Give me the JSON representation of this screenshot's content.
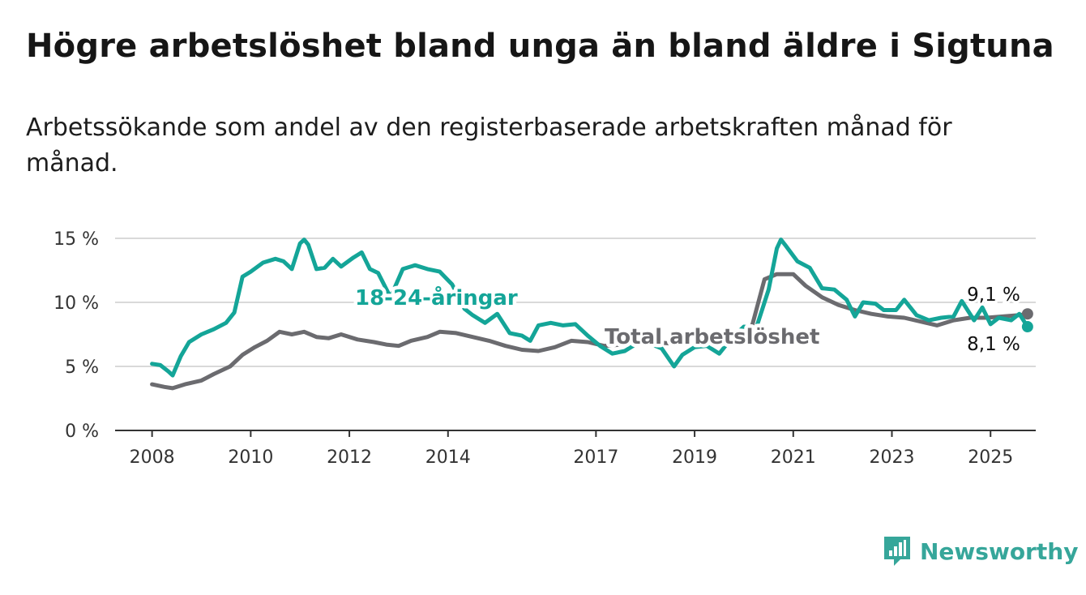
{
  "title": "Högre arbetslöshet bland unga än bland äldre i Sigtuna",
  "subtitle": "Arbetssökande som andel av den registerbaserade arbetskraften månad för månad.",
  "brand": {
    "name": "Newsworthy",
    "color": "#36a69a"
  },
  "colors": {
    "young": "#14a598",
    "total": "#6b6b6f",
    "grid": "#d9d9d9",
    "axis": "#333333"
  },
  "chart_data": {
    "type": "line",
    "y_ticks": [
      "0 %",
      "5 %",
      "10 %",
      "15 %"
    ],
    "x_ticks": [
      "2008",
      "2010",
      "2012",
      "2014",
      "2017",
      "2019",
      "2021",
      "2023",
      "2025"
    ],
    "ylim": [
      0,
      15
    ],
    "xlim": [
      "2007-04",
      "2025-12"
    ],
    "grid": "horizontal",
    "series": [
      {
        "name": "18-24-åringar",
        "color": "#14a598",
        "end_label": "8,1 %",
        "points": [
          [
            "2008-01",
            5.2
          ],
          [
            "2008-03",
            5.1
          ],
          [
            "2008-05",
            4.6
          ],
          [
            "2008-06",
            4.3
          ],
          [
            "2008-08",
            5.8
          ],
          [
            "2008-10",
            6.9
          ],
          [
            "2009-01",
            7.5
          ],
          [
            "2009-04",
            7.9
          ],
          [
            "2009-07",
            8.4
          ],
          [
            "2009-09",
            9.2
          ],
          [
            "2009-11",
            12.0
          ],
          [
            "2010-01",
            12.4
          ],
          [
            "2010-04",
            13.1
          ],
          [
            "2010-07",
            13.4
          ],
          [
            "2010-09",
            13.2
          ],
          [
            "2010-11",
            12.6
          ],
          [
            "2011-01",
            14.6
          ],
          [
            "2011-02",
            14.9
          ],
          [
            "2011-03",
            14.5
          ],
          [
            "2011-05",
            12.6
          ],
          [
            "2011-07",
            12.7
          ],
          [
            "2011-09",
            13.4
          ],
          [
            "2011-11",
            12.8
          ],
          [
            "2012-02",
            13.5
          ],
          [
            "2012-04",
            13.9
          ],
          [
            "2012-06",
            12.6
          ],
          [
            "2012-08",
            12.3
          ],
          [
            "2012-11",
            10.4
          ],
          [
            "2013-02",
            12.6
          ],
          [
            "2013-05",
            12.9
          ],
          [
            "2013-08",
            12.6
          ],
          [
            "2013-11",
            12.4
          ],
          [
            "2014-02",
            11.4
          ],
          [
            "2014-05",
            9.5
          ],
          [
            "2014-07",
            9.0
          ],
          [
            "2014-10",
            8.4
          ],
          [
            "2015-01",
            9.1
          ],
          [
            "2015-04",
            7.6
          ],
          [
            "2015-07",
            7.4
          ],
          [
            "2015-09",
            7.0
          ],
          [
            "2015-11",
            8.2
          ],
          [
            "2016-02",
            8.4
          ],
          [
            "2016-05",
            8.2
          ],
          [
            "2016-08",
            8.3
          ],
          [
            "2016-11",
            7.4
          ],
          [
            "2017-02",
            6.6
          ],
          [
            "2017-05",
            6.0
          ],
          [
            "2017-08",
            6.2
          ],
          [
            "2017-11",
            6.8
          ],
          [
            "2018-02",
            6.8
          ],
          [
            "2018-05",
            6.4
          ],
          [
            "2018-08",
            5.0
          ],
          [
            "2018-10",
            5.9
          ],
          [
            "2019-01",
            6.5
          ],
          [
            "2019-04",
            6.6
          ],
          [
            "2019-07",
            6.0
          ],
          [
            "2019-10",
            7.2
          ],
          [
            "2020-01",
            8.1
          ],
          [
            "2020-04",
            8.0
          ],
          [
            "2020-07",
            11.0
          ],
          [
            "2020-09",
            14.2
          ],
          [
            "2020-10",
            14.9
          ],
          [
            "2020-11",
            14.5
          ],
          [
            "2021-02",
            13.2
          ],
          [
            "2021-05",
            12.7
          ],
          [
            "2021-08",
            11.1
          ],
          [
            "2021-11",
            11.0
          ],
          [
            "2022-02",
            10.2
          ],
          [
            "2022-04",
            8.9
          ],
          [
            "2022-06",
            10.0
          ],
          [
            "2022-09",
            9.9
          ],
          [
            "2022-11",
            9.4
          ],
          [
            "2023-02",
            9.4
          ],
          [
            "2023-04",
            10.2
          ],
          [
            "2023-07",
            9.0
          ],
          [
            "2023-10",
            8.6
          ],
          [
            "2024-01",
            8.8
          ],
          [
            "2024-04",
            8.9
          ],
          [
            "2024-06",
            10.1
          ],
          [
            "2024-09",
            8.6
          ],
          [
            "2024-11",
            9.6
          ],
          [
            "2025-01",
            8.3
          ],
          [
            "2025-03",
            8.8
          ],
          [
            "2025-06",
            8.6
          ],
          [
            "2025-08",
            9.1
          ],
          [
            "2025-10",
            8.1
          ]
        ]
      },
      {
        "name": "Total arbetslöshet",
        "color": "#6b6b6f",
        "end_label": "9,1 %",
        "points": [
          [
            "2008-01",
            3.6
          ],
          [
            "2008-04",
            3.4
          ],
          [
            "2008-06",
            3.3
          ],
          [
            "2008-09",
            3.6
          ],
          [
            "2009-01",
            3.9
          ],
          [
            "2009-04",
            4.4
          ],
          [
            "2009-08",
            5.0
          ],
          [
            "2009-11",
            5.9
          ],
          [
            "2010-02",
            6.5
          ],
          [
            "2010-05",
            7.0
          ],
          [
            "2010-08",
            7.7
          ],
          [
            "2010-11",
            7.5
          ],
          [
            "2011-02",
            7.7
          ],
          [
            "2011-05",
            7.3
          ],
          [
            "2011-08",
            7.2
          ],
          [
            "2011-11",
            7.5
          ],
          [
            "2012-03",
            7.1
          ],
          [
            "2012-07",
            6.9
          ],
          [
            "2012-10",
            6.7
          ],
          [
            "2013-01",
            6.6
          ],
          [
            "2013-04",
            7.0
          ],
          [
            "2013-08",
            7.3
          ],
          [
            "2013-11",
            7.7
          ],
          [
            "2014-03",
            7.6
          ],
          [
            "2014-07",
            7.3
          ],
          [
            "2014-11",
            7.0
          ],
          [
            "2015-03",
            6.6
          ],
          [
            "2015-07",
            6.3
          ],
          [
            "2015-11",
            6.2
          ],
          [
            "2016-03",
            6.5
          ],
          [
            "2016-07",
            7.0
          ],
          [
            "2016-11",
            6.9
          ],
          [
            "2017-03",
            6.6
          ],
          [
            "2017-07",
            6.7
          ],
          [
            "2017-11",
            6.8
          ],
          [
            "2018-03",
            6.9
          ],
          [
            "2018-07",
            6.8
          ],
          [
            "2018-11",
            6.9
          ],
          [
            "2019-03",
            7.0
          ],
          [
            "2019-07",
            7.2
          ],
          [
            "2019-11",
            7.6
          ],
          [
            "2020-03",
            8.2
          ],
          [
            "2020-06",
            11.8
          ],
          [
            "2020-09",
            12.2
          ],
          [
            "2021-01",
            12.2
          ],
          [
            "2021-04",
            11.3
          ],
          [
            "2021-08",
            10.4
          ],
          [
            "2021-12",
            9.8
          ],
          [
            "2022-04",
            9.4
          ],
          [
            "2022-08",
            9.1
          ],
          [
            "2022-12",
            8.9
          ],
          [
            "2023-04",
            8.8
          ],
          [
            "2023-08",
            8.5
          ],
          [
            "2023-12",
            8.2
          ],
          [
            "2024-04",
            8.6
          ],
          [
            "2024-08",
            8.8
          ],
          [
            "2024-12",
            8.8
          ],
          [
            "2025-04",
            8.9
          ],
          [
            "2025-08",
            9.0
          ],
          [
            "2025-10",
            9.1
          ]
        ]
      }
    ]
  }
}
